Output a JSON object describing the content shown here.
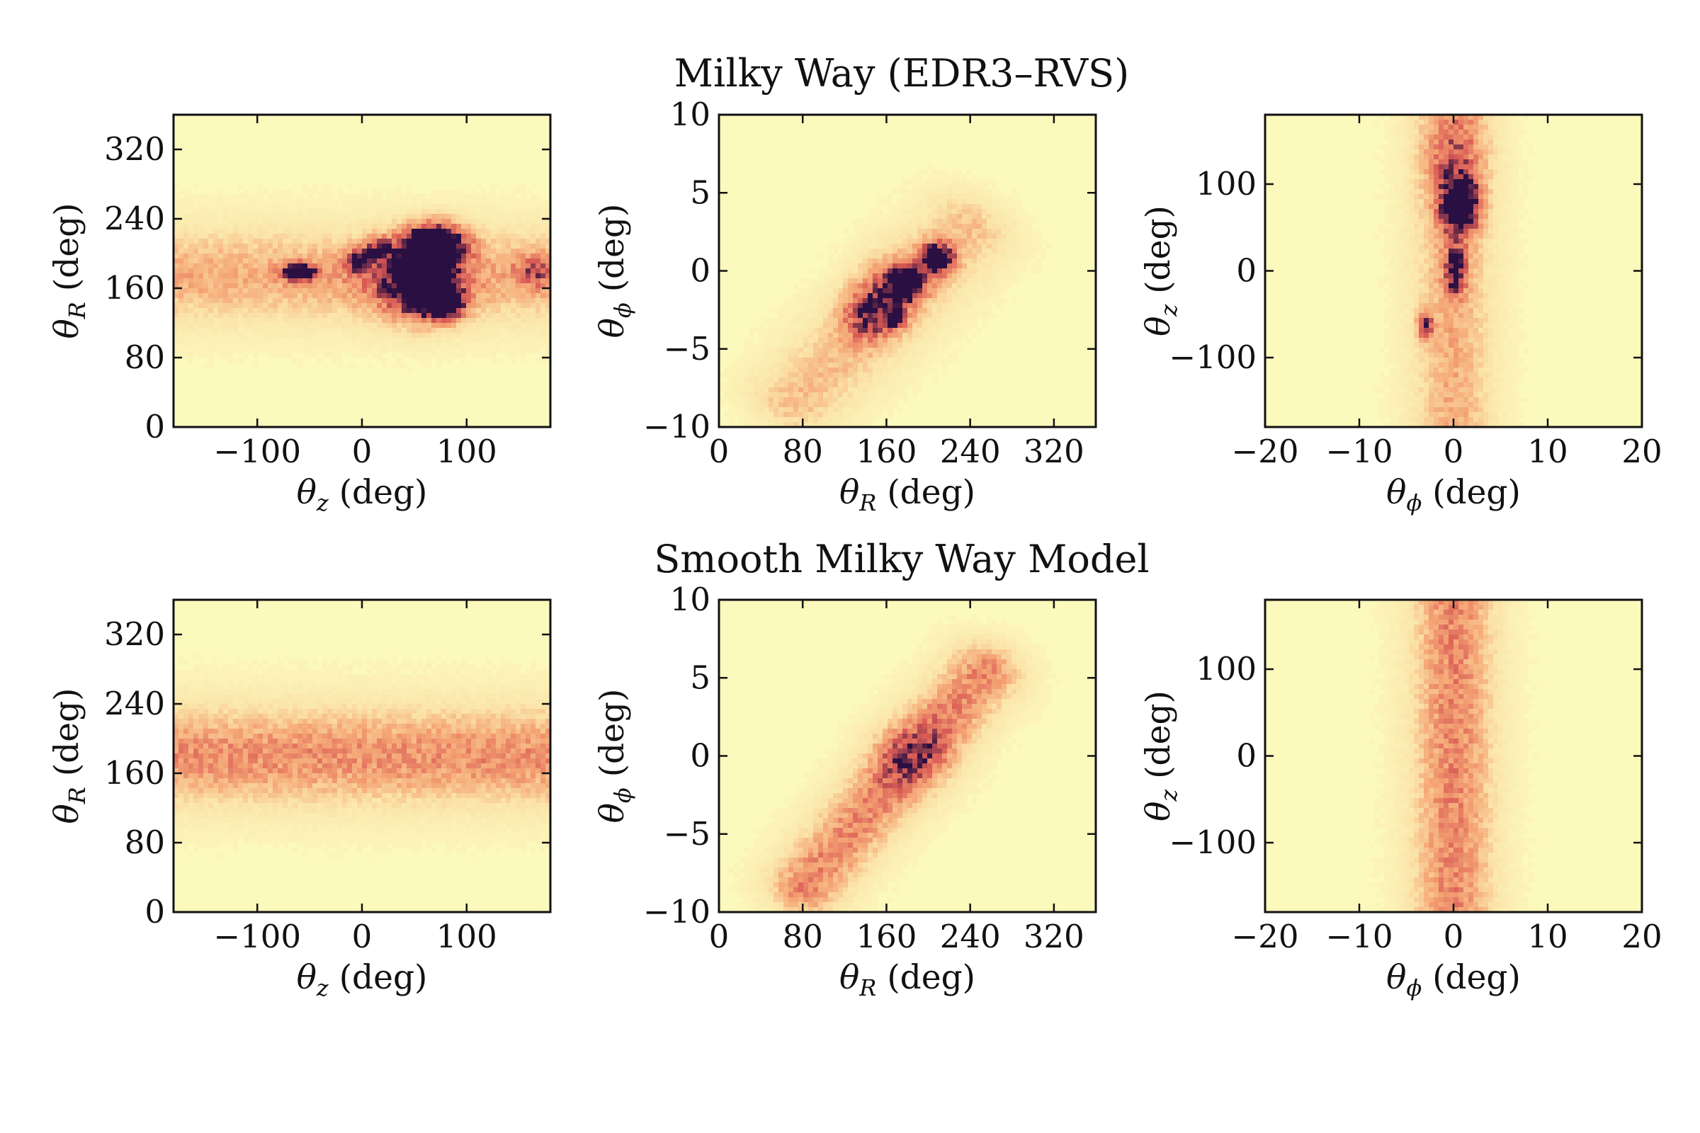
{
  "colors": {
    "background": "#fcf9bd",
    "low": "#fbe3a8",
    "mid": "#f4a374",
    "high": "#d95a55",
    "peak": "#2a0f42"
  },
  "chart_data": [
    {
      "type": "heatmap",
      "panel": "row1-col1",
      "row_title": "Milky Way (EDR3–RVS)",
      "xlabel": {
        "symbol": "θ",
        "sub": "z",
        "unit": " (deg)"
      },
      "ylabel": {
        "symbol": "θ",
        "sub": "R",
        "unit": " (deg)"
      },
      "xlim": [
        -180,
        180
      ],
      "ylim": [
        0,
        360
      ],
      "xticks": [
        -100,
        0,
        100
      ],
      "yticks": [
        0,
        80,
        160,
        240,
        320
      ],
      "xtick_labels": [
        "−100",
        "0",
        "100"
      ],
      "ytick_labels": [
        "0",
        "80",
        "160",
        "240",
        "320"
      ],
      "ridge": {
        "type": "horizontal",
        "center": 175,
        "width": 55,
        "amp": 0.42
      },
      "clumps": [
        {
          "x": -60,
          "y": 178,
          "sx": 11,
          "sy": 7,
          "amp": 1.0
        },
        {
          "x": -5,
          "y": 190,
          "sx": 8,
          "sy": 10,
          "amp": 0.6
        },
        {
          "x": 15,
          "y": 205,
          "sx": 9,
          "sy": 9,
          "amp": 0.55
        },
        {
          "x": 72,
          "y": 213,
          "sx": 20,
          "sy": 16,
          "amp": 1.0
        },
        {
          "x": 58,
          "y": 190,
          "sx": 22,
          "sy": 25,
          "amp": 0.55
        },
        {
          "x": 65,
          "y": 150,
          "sx": 22,
          "sy": 22,
          "amp": 0.6
        },
        {
          "x": 80,
          "y": 140,
          "sx": 12,
          "sy": 10,
          "amp": 0.75
        },
        {
          "x": 40,
          "y": 165,
          "sx": 30,
          "sy": 30,
          "amp": 0.35
        },
        {
          "x": 165,
          "y": 180,
          "sx": 14,
          "sy": 14,
          "amp": 0.35
        }
      ]
    },
    {
      "type": "heatmap",
      "panel": "row1-col2",
      "xlabel": {
        "symbol": "θ",
        "sub": "R",
        "unit": " (deg)"
      },
      "ylabel": {
        "symbol": "θ",
        "sub": "ϕ",
        "unit": " (deg)"
      },
      "xlim": [
        0,
        360
      ],
      "ylim": [
        -10,
        10
      ],
      "xticks": [
        0,
        80,
        160,
        240,
        320
      ],
      "yticks": [
        -10,
        -5,
        0,
        5,
        10
      ],
      "xtick_labels": [
        "0",
        "80",
        "160",
        "240",
        "320"
      ],
      "ytick_labels": [
        "−10",
        "−5",
        "0",
        "5",
        "10"
      ],
      "ridge": {
        "type": "diagonal",
        "x0": 70,
        "y0": -8.5,
        "x1": 240,
        "y1": 2.8,
        "width": 2.6,
        "amp": 0.35
      },
      "clumps": [
        {
          "x": 180,
          "y": -0.8,
          "sx": 12,
          "sy": 0.7,
          "amp": 0.9
        },
        {
          "x": 208,
          "y": 0.8,
          "sx": 11,
          "sy": 0.7,
          "amp": 1.0
        },
        {
          "x": 168,
          "y": -3.1,
          "sx": 6,
          "sy": 0.35,
          "amp": 0.8
        },
        {
          "x": 140,
          "y": -2.8,
          "sx": 18,
          "sy": 1.2,
          "amp": 0.45
        },
        {
          "x": 160,
          "y": -1.2,
          "sx": 20,
          "sy": 1.6,
          "amp": 0.4
        }
      ]
    },
    {
      "type": "heatmap",
      "panel": "row1-col3",
      "xlabel": {
        "symbol": "θ",
        "sub": "ϕ",
        "unit": " (deg)"
      },
      "ylabel": {
        "symbol": "θ",
        "sub": "z",
        "unit": " (deg)"
      },
      "xlim": [
        -20,
        20
      ],
      "ylim": [
        -180,
        180
      ],
      "xticks": [
        -20,
        -10,
        0,
        10,
        20
      ],
      "yticks": [
        -100,
        0,
        100
      ],
      "xtick_labels": [
        "−20",
        "−10",
        "0",
        "10",
        "20"
      ],
      "ytick_labels": [
        "−100",
        "0",
        "100"
      ],
      "ridge": {
        "type": "vertical",
        "center": 0,
        "width": 4.2,
        "amp": 0.42
      },
      "clumps": [
        {
          "x": 0.8,
          "y": 75,
          "sx": 1.4,
          "sy": 22,
          "amp": 1.0
        },
        {
          "x": 0.2,
          "y": 0,
          "sx": 0.8,
          "sy": 18,
          "amp": 0.7
        },
        {
          "x": -3.0,
          "y": -62,
          "sx": 0.6,
          "sy": 12,
          "amp": 0.65
        },
        {
          "x": 0,
          "y": 130,
          "sx": 2.5,
          "sy": 40,
          "amp": 0.3
        }
      ]
    },
    {
      "type": "heatmap",
      "panel": "row2-col1",
      "row_title": "Smooth Milky Way Model",
      "xlabel": {
        "symbol": "θ",
        "sub": "z",
        "unit": " (deg)"
      },
      "ylabel": {
        "symbol": "θ",
        "sub": "R",
        "unit": " (deg)"
      },
      "xlim": [
        -180,
        180
      ],
      "ylim": [
        0,
        360
      ],
      "xticks": [
        -100,
        0,
        100
      ],
      "yticks": [
        0,
        80,
        160,
        240,
        320
      ],
      "xtick_labels": [
        "−100",
        "0",
        "100"
      ],
      "ytick_labels": [
        "0",
        "80",
        "160",
        "240",
        "320"
      ],
      "ridge": {
        "type": "horizontal",
        "center": 180,
        "width": 58,
        "amp": 0.52
      },
      "clumps": []
    },
    {
      "type": "heatmap",
      "panel": "row2-col2",
      "xlabel": {
        "symbol": "θ",
        "sub": "R",
        "unit": " (deg)"
      },
      "ylabel": {
        "symbol": "θ",
        "sub": "ϕ",
        "unit": " (deg)"
      },
      "xlim": [
        0,
        360
      ],
      "ylim": [
        -10,
        10
      ],
      "xticks": [
        0,
        80,
        160,
        240,
        320
      ],
      "yticks": [
        -10,
        -5,
        0,
        5,
        10
      ],
      "xtick_labels": [
        "0",
        "80",
        "160",
        "240",
        "320"
      ],
      "ytick_labels": [
        "−10",
        "−5",
        "0",
        "5",
        "10"
      ],
      "ridge": {
        "type": "diagonal",
        "x0": 80,
        "y0": -8.5,
        "x1": 255,
        "y1": 5.5,
        "width": 2.1,
        "amp": 0.55
      },
      "clumps": [
        {
          "x": 185,
          "y": 0,
          "sx": 28,
          "sy": 1.6,
          "amp": 0.35
        }
      ]
    },
    {
      "type": "heatmap",
      "panel": "row2-col3",
      "xlabel": {
        "symbol": "θ",
        "sub": "ϕ",
        "unit": " (deg)"
      },
      "ylabel": {
        "symbol": "θ",
        "sub": "z",
        "unit": " (deg)"
      },
      "xlim": [
        -20,
        20
      ],
      "ylim": [
        -180,
        180
      ],
      "xticks": [
        -20,
        -10,
        0,
        10,
        20
      ],
      "yticks": [
        -100,
        0,
        100
      ],
      "xtick_labels": [
        "−20",
        "−10",
        "0",
        "10",
        "20"
      ],
      "ytick_labels": [
        "−100",
        "0",
        "100"
      ],
      "ridge": {
        "type": "vertical",
        "center": 0,
        "width": 4.4,
        "amp": 0.55
      },
      "clumps": []
    }
  ]
}
